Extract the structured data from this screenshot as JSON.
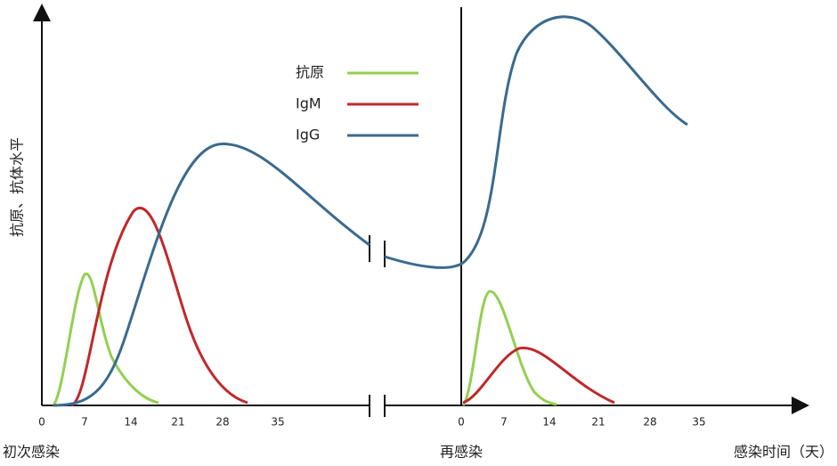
{
  "axis": {
    "y_label": "抗原、抗体水平",
    "x_label": "感染时间（天）",
    "first_ticks": [
      "0",
      "7",
      "14",
      "21",
      "28",
      "35"
    ],
    "second_ticks": [
      "0",
      "7",
      "14",
      "21",
      "28",
      "35"
    ],
    "first_event": "初次感染",
    "second_event": "再感染"
  },
  "legend": [
    {
      "name": "抗原",
      "color": "#92d050"
    },
    {
      "name": "IgM",
      "color": "#c0282b"
    },
    {
      "name": "IgG",
      "color": "#3a6a8e"
    }
  ]
}
